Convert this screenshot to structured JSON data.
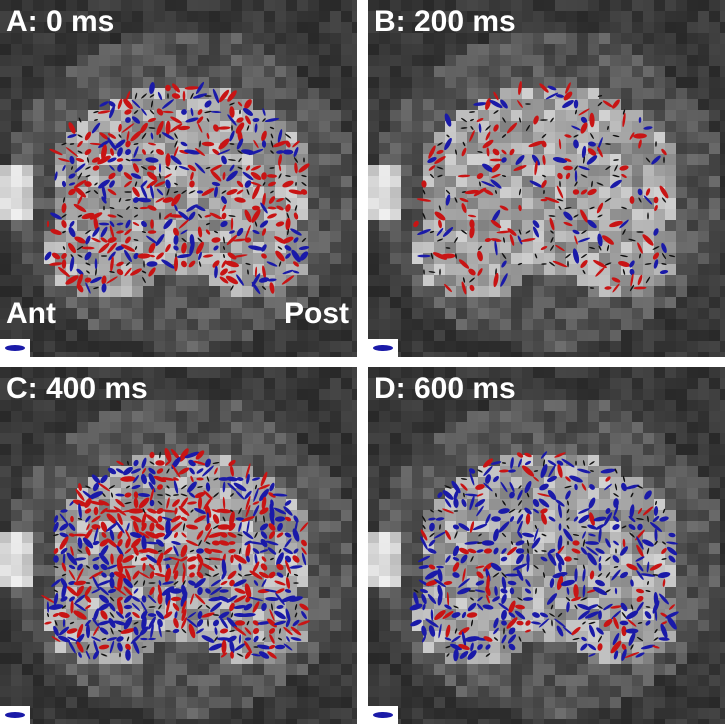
{
  "figure": {
    "panels": [
      {
        "id": "A",
        "label": "A: 0 ms",
        "show_orientation": true,
        "dominant": "mixed"
      },
      {
        "id": "B",
        "label": "B: 200 ms",
        "show_orientation": false,
        "dominant": "sparse"
      },
      {
        "id": "C",
        "label": "C: 400 ms",
        "show_orientation": false,
        "dominant": "strong"
      },
      {
        "id": "D",
        "label": "D: 600 ms",
        "show_orientation": false,
        "dominant": "blue"
      }
    ],
    "orientation": {
      "anterior": "Ant",
      "posterior": "Post"
    },
    "colors": {
      "positive": "#c81414",
      "negative": "#1a1aa8",
      "scale_glyph": "#1a1aa8",
      "background": "#2b2b2b"
    }
  }
}
